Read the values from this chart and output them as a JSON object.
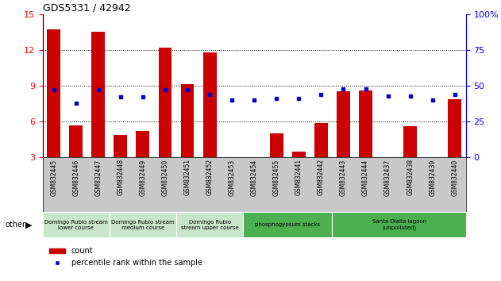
{
  "title": "GDS5331 / 42942",
  "samples": [
    "GSM832445",
    "GSM832446",
    "GSM832447",
    "GSM832448",
    "GSM832449",
    "GSM832450",
    "GSM832451",
    "GSM832452",
    "GSM832453",
    "GSM832454",
    "GSM832455",
    "GSM832441",
    "GSM832442",
    "GSM832443",
    "GSM832444",
    "GSM832437",
    "GSM832438",
    "GSM832439",
    "GSM832440"
  ],
  "counts": [
    13.7,
    5.7,
    13.5,
    4.9,
    5.2,
    12.2,
    9.1,
    11.8,
    2.7,
    2.7,
    5.0,
    3.5,
    5.9,
    8.5,
    8.6,
    2.8,
    5.6,
    2.8,
    7.9
  ],
  "percentiles": [
    47,
    38,
    47,
    42,
    42,
    47,
    47,
    44,
    40,
    40,
    41,
    41,
    44,
    48,
    48,
    43,
    43,
    40,
    44
  ],
  "ylim_left": [
    3,
    15
  ],
  "ylim_right": [
    0,
    100
  ],
  "yticks_left": [
    3,
    6,
    9,
    12,
    15
  ],
  "yticks_right": [
    0,
    25,
    50,
    75,
    100
  ],
  "bar_color": "#cc0000",
  "dot_color": "#0000cc",
  "grid_ticks": [
    6,
    9,
    12
  ],
  "groups": [
    {
      "label": "Domingo Rubio stream\nlower course",
      "start": 0,
      "end": 2,
      "color": "#c8e6c9"
    },
    {
      "label": "Domingo Rubio stream\nmedium course",
      "start": 3,
      "end": 5,
      "color": "#c8e6c9"
    },
    {
      "label": "Domingo Rubio\nstream upper course",
      "start": 6,
      "end": 8,
      "color": "#c8e6c9"
    },
    {
      "label": "phosphogypsum stacks",
      "start": 9,
      "end": 12,
      "color": "#4caf50"
    },
    {
      "label": "Santa Olalla lagoon\n(unpolluted)",
      "start": 13,
      "end": 18,
      "color": "#4caf50"
    }
  ],
  "legend_count_label": "count",
  "legend_pct_label": "percentile rank within the sample",
  "other_label": "other",
  "tick_bg_color": "#c8c8c8",
  "right_axis_label": "100%"
}
